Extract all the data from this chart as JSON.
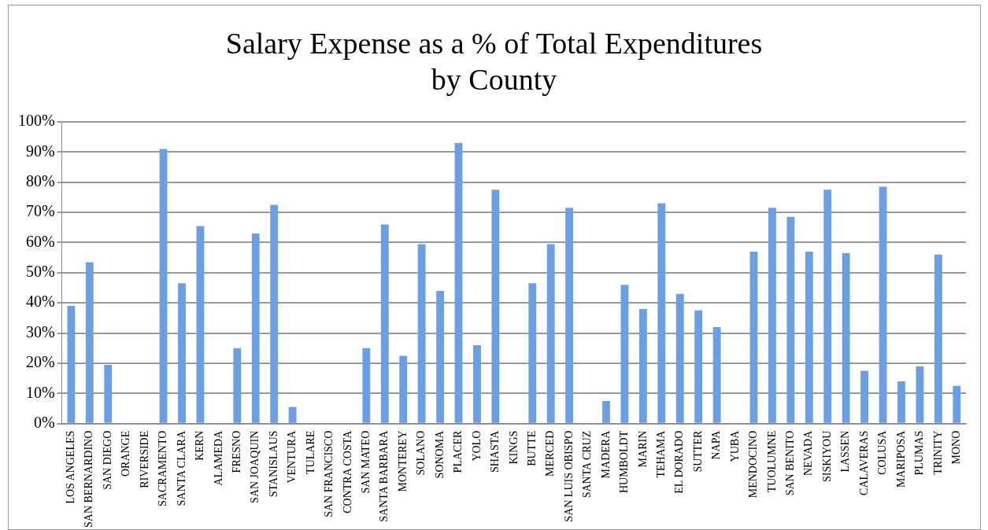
{
  "chart_data": {
    "type": "bar",
    "title": "Salary Expense as a % of Total Expenditures by County",
    "categories": [
      "LOS ANGELES",
      "SAN BERNARDINO",
      "SAN DIEGO",
      "ORANGE",
      "RIVERSIDE",
      "SACRAMENTO",
      "SANTA CLARA",
      "KERN",
      "ALAMEDA",
      "FRESNO",
      "SAN JOAQUIN",
      "STANISLAUS",
      "VENTURA",
      "TULARE",
      "SAN FRANCISCO",
      "CONTRA COSTA",
      "SAN MATEO",
      "SANTA BARBARA",
      "MONTEREY",
      "SOLANO",
      "SONOMA",
      "PLACER",
      "YOLO",
      "SHASTA",
      "KINGS",
      "BUTTE",
      "MERCED",
      "SAN LUIS OBISPO",
      "SANTA CRUZ",
      "MADERA",
      "HUMBOLDT",
      "MARIN",
      "TEHAMA",
      "EL DORADO",
      "SUTTER",
      "NAPA",
      "YUBA",
      "MENDOCINO",
      "TUOLUMNE",
      "SAN BENITO",
      "NEVADA",
      "SISKIYOU",
      "LASSEN",
      "CALAVERAS",
      "COLUSA",
      "MARIPOSA",
      "PLUMAS",
      "TRINITY",
      "MONO"
    ],
    "values": [
      39,
      53.5,
      19.5,
      0,
      0,
      91,
      46.5,
      65.5,
      0,
      25,
      63,
      72.5,
      5.5,
      0,
      0,
      0,
      25,
      66,
      22.5,
      59.5,
      44,
      93,
      26,
      77.5,
      0,
      46.5,
      59.5,
      71.5,
      0,
      7.5,
      46,
      38,
      73,
      43,
      37.5,
      32,
      0,
      57,
      71.5,
      68.5,
      57,
      77.5,
      56.5,
      17.5,
      78.5,
      14,
      19,
      56,
      12.5
    ],
    "color": "#6a9fe6",
    "ylim": [
      0,
      100
    ],
    "yticks": [
      {
        "value": 0,
        "label": "0%"
      },
      {
        "value": 10,
        "label": "10%"
      },
      {
        "value": 20,
        "label": "20%"
      },
      {
        "value": 30,
        "label": "30%"
      },
      {
        "value": 40,
        "label": "40%"
      },
      {
        "value": 50,
        "label": "50%"
      },
      {
        "value": 60,
        "label": "60%"
      },
      {
        "value": 70,
        "label": "70%"
      },
      {
        "value": 80,
        "label": "80%"
      },
      {
        "value": 90,
        "label": "90%"
      },
      {
        "value": 100,
        "label": "100%"
      }
    ],
    "grid": "y",
    "legend": false
  }
}
